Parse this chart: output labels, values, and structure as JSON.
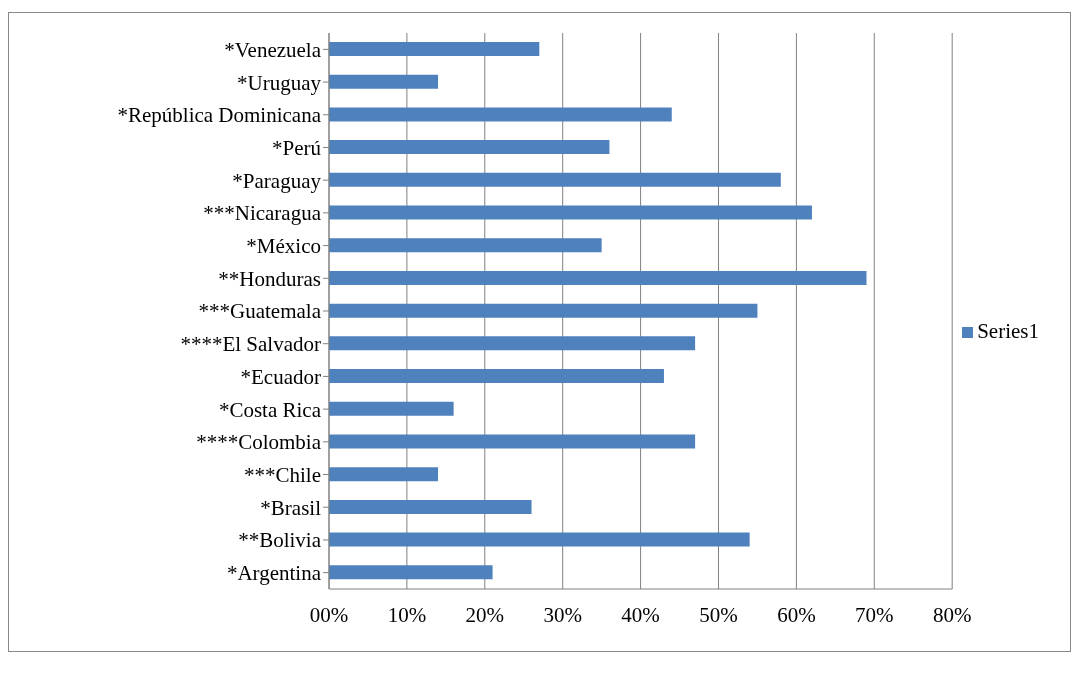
{
  "chart_data": {
    "type": "bar",
    "orientation": "horizontal",
    "categories": [
      "*Venezuela",
      "*Uruguay",
      "*República Dominicana",
      "*Perú",
      "*Paraguay",
      "***Nicaragua",
      "*México",
      "**Honduras",
      "***Guatemala",
      "****El Salvador",
      "*Ecuador",
      "*Costa Rica",
      "****Colombia",
      "***Chile",
      "*Brasil",
      "**Bolivia",
      "*Argentina"
    ],
    "series": [
      {
        "name": "Series1",
        "color": "#4f81bd",
        "values": [
          27,
          14,
          44,
          36,
          58,
          62,
          35,
          69,
          55,
          47,
          43,
          16,
          47,
          14,
          26,
          54,
          21
        ]
      }
    ],
    "xlim": [
      0,
      80
    ],
    "xticks": [
      {
        "value": 0,
        "label": "00%"
      },
      {
        "value": 10,
        "label": "10%"
      },
      {
        "value": 20,
        "label": "20%"
      },
      {
        "value": 30,
        "label": "30%"
      },
      {
        "value": 40,
        "label": "40%"
      },
      {
        "value": 50,
        "label": "50%"
      },
      {
        "value": 60,
        "label": "60%"
      },
      {
        "value": 70,
        "label": "70%"
      },
      {
        "value": 80,
        "label": "80%"
      }
    ],
    "grid": "x",
    "legend": "right"
  }
}
